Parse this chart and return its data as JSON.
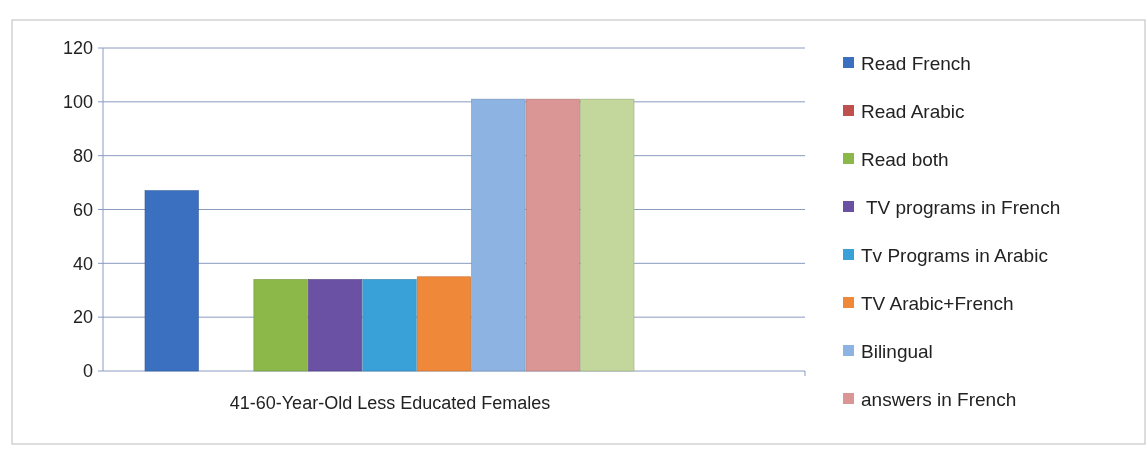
{
  "chart_data": {
    "type": "bar",
    "categories": [
      "41-60-Year-Old Less Educated Females"
    ],
    "series": [
      {
        "name": "Read French",
        "color": "#3b6fc0",
        "values": [
          67
        ]
      },
      {
        "name": "Read Arabic",
        "color": "#c0504d",
        "values": [
          0
        ]
      },
      {
        "name": "Read both",
        "color": "#8cb84a",
        "values": [
          34
        ]
      },
      {
        "name": " TV programs in French",
        "color": "#6a51a3",
        "values": [
          34
        ]
      },
      {
        "name": "Tv Programs in Arabic",
        "color": "#3aa0d8",
        "values": [
          34
        ]
      },
      {
        "name": "TV Arabic+French",
        "color": "#f0883a",
        "values": [
          35
        ]
      },
      {
        "name": "Bilingual",
        "color": "#8db3e2",
        "values": [
          101
        ]
      },
      {
        "name": "answers in French",
        "color": "#d99694",
        "values": [
          101
        ]
      },
      {
        "color": "#c3d69b",
        "values": [
          101
        ]
      }
    ],
    "ylim": [
      0,
      120
    ],
    "yticks": [
      0,
      20,
      40,
      60,
      80,
      100,
      120
    ],
    "grid": "y",
    "legend": "right"
  }
}
